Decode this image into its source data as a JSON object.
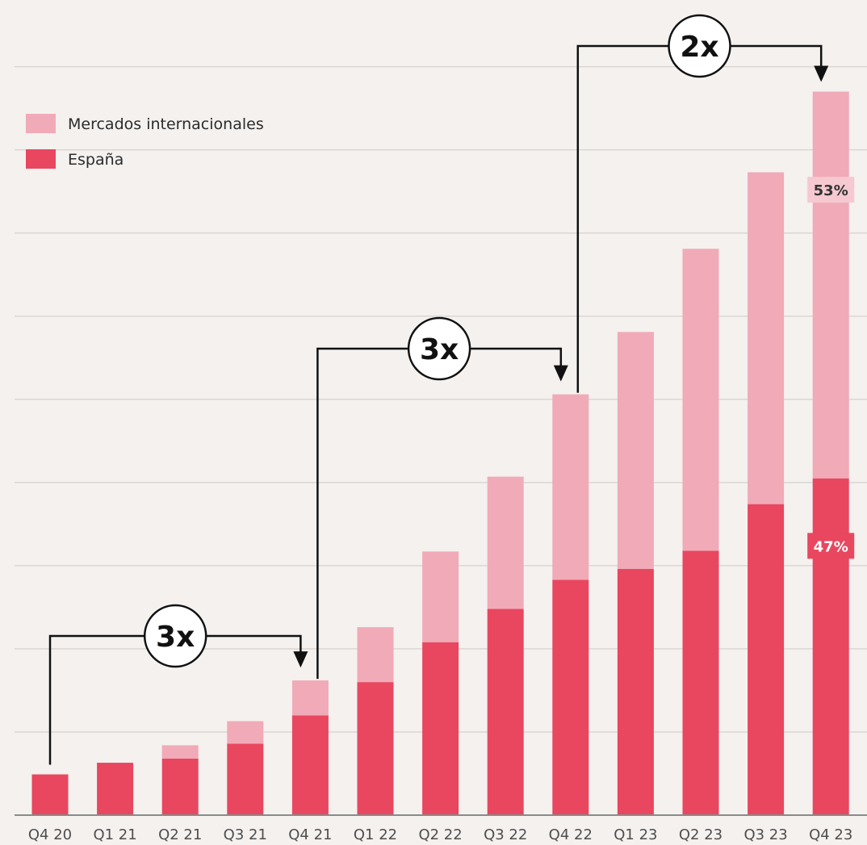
{
  "chart_data": {
    "type": "bar",
    "stacked": true,
    "categories": [
      "Q4 20",
      "Q1 21",
      "Q2 21",
      "Q3 21",
      "Q4 21",
      "Q1 22",
      "Q2 22",
      "Q3 22",
      "Q4 22",
      "Q1 23",
      "Q2 23",
      "Q3 23",
      "Q4 23"
    ],
    "series": [
      {
        "name": "España",
        "color": "#e8475f",
        "values": [
          0.49,
          0.63,
          0.68,
          0.86,
          1.2,
          1.6,
          2.08,
          2.48,
          2.83,
          2.96,
          3.18,
          3.74,
          4.05
        ]
      },
      {
        "name": "Mercados internacionales",
        "color": "#f1aab7",
        "values": [
          0.0,
          0.0,
          0.16,
          0.27,
          0.42,
          0.66,
          1.09,
          1.59,
          2.23,
          2.85,
          3.63,
          3.99,
          4.65
        ]
      }
    ],
    "ylim": [
      0,
      9.2
    ],
    "y_gridlines": [
      1,
      2,
      3,
      4,
      5,
      6,
      7,
      8,
      9
    ],
    "legend_position": "top-left",
    "legend_order": [
      "Mercados internacionales",
      "España"
    ],
    "annotations": [
      {
        "label": "3x",
        "from": "Q4 20",
        "to": "Q4 21"
      },
      {
        "label": "3x",
        "from": "Q4 21",
        "to": "Q4 22"
      },
      {
        "label": "2x",
        "from": "Q4 22",
        "to": "Q4 23"
      }
    ],
    "share_labels": [
      {
        "category": "Q4 23",
        "series": "Mercados internacionales",
        "text": "53%"
      },
      {
        "category": "Q4 23",
        "series": "España",
        "text": "47%"
      }
    ],
    "colors": {
      "background": "#f4f1ef",
      "grid": "#dcd6d3",
      "axis": "#8a8a8a",
      "arrow": "#111111"
    }
  }
}
